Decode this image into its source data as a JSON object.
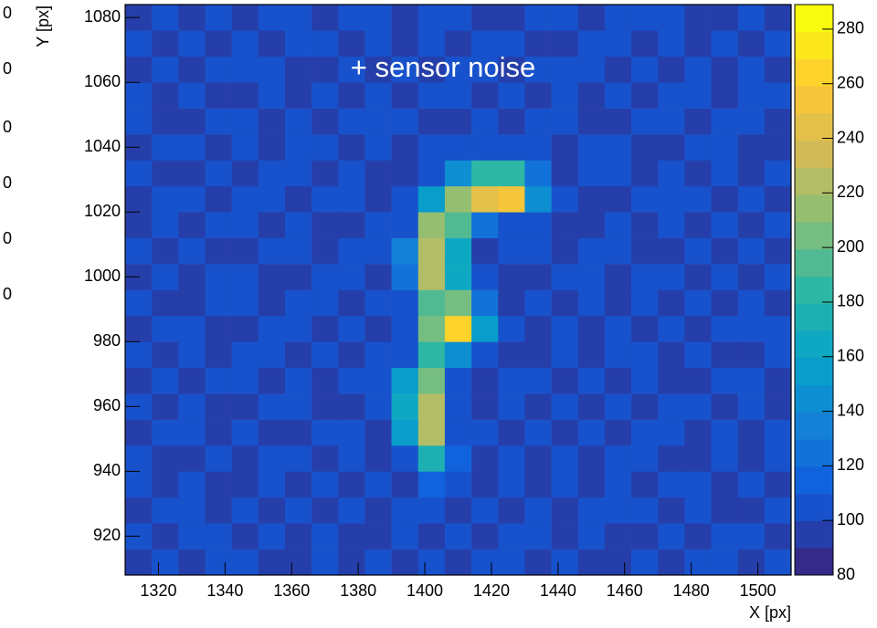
{
  "chart_data": {
    "type": "heatmap",
    "annotation": "+ sensor noise",
    "xlabel": "X [px]",
    "ylabel": "Y [px]",
    "xlim": [
      1310,
      1510
    ],
    "ylim": [
      908,
      1084
    ],
    "zlim": [
      80,
      289
    ],
    "xticks": [
      1320,
      1340,
      1360,
      1380,
      1400,
      1420,
      1440,
      1460,
      1480,
      1500
    ],
    "yticks": [
      920,
      940,
      960,
      980,
      1000,
      1020,
      1040,
      1060,
      1080
    ],
    "zticks": [
      80,
      100,
      120,
      140,
      160,
      180,
      200,
      220,
      240,
      260,
      280
    ],
    "levels": 21,
    "colormap": [
      "#352a87",
      "#0f5cdd",
      "#1481d6",
      "#06a4ca",
      "#2eb7a4",
      "#87bf77",
      "#d1bb59",
      "#fec832",
      "#f9fb0e"
    ],
    "xbins": [
      1310,
      1318,
      1326,
      1334,
      1342,
      1350,
      1358,
      1366,
      1374,
      1382,
      1390,
      1398,
      1406,
      1414,
      1422,
      1430,
      1438,
      1446,
      1454,
      1462,
      1470,
      1478,
      1486,
      1494,
      1502,
      1510
    ],
    "ybins": [
      908,
      916,
      924,
      932,
      940,
      948,
      956,
      964,
      972,
      980,
      988,
      996,
      1004,
      1012,
      1020,
      1028,
      1036,
      1044,
      1052,
      1060,
      1068,
      1076,
      1084
    ],
    "z": [
      [
        98,
        104,
        95,
        101,
        108,
        97,
        93,
        102,
        99,
        105,
        96,
        100,
        94,
        103,
        107,
        98,
        101,
        92,
        99,
        104,
        97,
        106,
        100,
        95,
        102
      ],
      [
        103,
        96,
        100,
        107,
        94,
        101,
        98,
        105,
        92,
        99,
        104,
        97,
        101,
        95,
        100,
        108,
        96,
        102,
        99,
        94,
        105,
        98,
        103,
        100,
        96
      ],
      [
        95,
        101,
        106,
        98,
        102,
        96,
        104,
        99,
        107,
        93,
        100,
        103,
        98,
        106,
        95,
        101,
        97,
        104,
        100,
        109,
        96,
        101,
        94,
        99,
        105
      ],
      [
        100,
        97,
        103,
        95,
        99,
        108,
        94,
        101,
        96,
        104,
        99,
        110,
        102,
        97,
        100,
        95,
        106,
        98,
        103,
        96,
        100,
        104,
        97,
        102,
        98
      ],
      [
        106,
        99,
        94,
        102,
        97,
        100,
        105,
        96,
        103,
        98,
        101,
        170,
        115,
        99,
        104,
        97,
        100,
        93,
        101,
        106,
        98,
        95,
        102,
        99,
        104
      ],
      [
        97,
        102,
        100,
        96,
        105,
        99,
        93,
        107,
        100,
        95,
        150,
        220,
        104,
        101,
        96,
        103,
        99,
        105,
        97,
        100,
        104,
        98,
        101,
        96,
        100
      ],
      [
        101,
        95,
        104,
        99,
        98,
        103,
        100,
        97,
        94,
        102,
        165,
        225,
        106,
        98,
        103,
        96,
        101,
        99,
        108,
        95,
        100,
        103,
        97,
        105,
        99
      ],
      [
        99,
        106,
        97,
        103,
        101,
        94,
        102,
        99,
        105,
        100,
        150,
        200,
        103,
        97,
        100,
        105,
        95,
        102,
        98,
        101,
        96,
        99,
        106,
        100,
        94
      ],
      [
        104,
        98,
        101,
        95,
        107,
        100,
        97,
        103,
        98,
        104,
        101,
        180,
        140,
        102,
        96,
        99,
        104,
        97,
        100,
        103,
        99,
        105,
        98,
        94,
        101
      ],
      [
        96,
        100,
        105,
        99,
        94,
        102,
        106,
        98,
        101,
        97,
        103,
        200,
        265,
        150,
        101,
        98,
        102,
        95,
        104,
        99,
        101,
        97,
        103,
        100,
        106
      ],
      [
        102,
        97,
        99,
        104,
        100,
        96,
        101,
        105,
        95,
        100,
        106,
        190,
        200,
        125,
        97,
        104,
        96,
        101,
        99,
        103,
        95,
        100,
        98,
        104,
        99
      ],
      [
        98,
        103,
        96,
        100,
        105,
        99,
        94,
        100,
        104,
        97,
        125,
        220,
        160,
        101,
        99,
        96,
        103,
        100,
        97,
        105,
        102,
        98,
        101,
        96,
        103
      ],
      [
        105,
        99,
        102,
        97,
        98,
        104,
        100,
        96,
        101,
        103,
        130,
        225,
        165,
        98,
        104,
        100,
        97,
        106,
        101,
        94,
        99,
        103,
        96,
        102,
        98
      ],
      [
        99,
        101,
        97,
        106,
        100,
        95,
        103,
        99,
        97,
        100,
        104,
        215,
        190,
        120,
        100,
        102,
        99,
        96,
        104,
        98,
        101,
        97,
        105,
        99,
        100
      ],
      [
        94,
        100,
        104,
        98,
        102,
        101,
        97,
        105,
        100,
        96,
        101,
        150,
        215,
        240,
        255,
        145,
        103,
        99,
        95,
        101,
        104,
        100,
        98,
        103,
        97
      ],
      [
        101,
        96,
        99,
        103,
        97,
        106,
        100,
        94,
        103,
        99,
        97,
        105,
        140,
        180,
        185,
        120,
        98,
        104,
        100,
        97,
        102,
        96,
        101,
        99,
        105
      ],
      [
        97,
        105,
        101,
        96,
        104,
        98,
        102,
        100,
        95,
        101,
        99,
        103,
        106,
        104,
        101,
        100,
        96,
        102,
        105,
        99,
        97,
        103,
        100,
        98,
        94
      ],
      [
        103,
        99,
        95,
        100,
        101,
        97,
        105,
        98,
        102,
        107,
        100,
        96,
        99,
        101,
        97,
        103,
        100,
        98,
        94,
        104,
        100,
        99,
        106,
        101,
        97
      ],
      [
        100,
        94,
        103,
        99,
        96,
        102,
        99,
        104,
        97,
        100,
        95,
        101,
        104,
        98,
        106,
        99,
        102,
        97,
        101,
        96,
        103,
        105,
        98,
        100,
        102
      ],
      [
        96,
        102,
        98,
        105,
        100,
        101,
        95,
        99,
        106,
        94,
        102,
        98,
        100,
        103,
        95,
        101,
        104,
        100,
        99,
        102,
        97,
        100,
        95,
        104,
        99
      ],
      [
        104,
        99,
        101,
        97,
        103,
        96,
        100,
        102,
        98,
        101,
        97,
        104,
        95,
        100,
        102,
        98,
        97,
        105,
        100,
        96,
        101,
        98,
        102,
        97,
        103
      ],
      [
        99,
        103,
        96,
        100,
        98,
        105,
        101,
        95,
        100,
        104,
        99,
        100,
        102,
        97,
        99,
        104,
        101,
        96,
        103,
        100,
        105,
        94,
        99,
        101,
        98
      ]
    ]
  },
  "left_fragments": [
    "0",
    "0",
    "0",
    "0",
    "0",
    "0"
  ]
}
